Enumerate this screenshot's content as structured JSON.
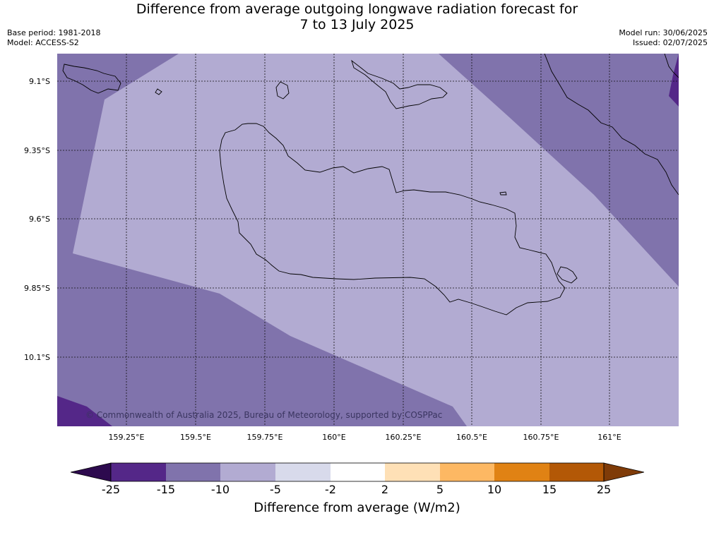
{
  "title_line1": "Difference from average outgoing longwave radiation forecast for",
  "title_line2": "7 to 13 July 2025",
  "base_period": "Base period: 1981-2018",
  "model": "Model: ACCESS-S2",
  "model_run": "Model run: 30/06/2025",
  "issued": "Issued: 02/07/2025",
  "lat_labels": [
    "9.1°S",
    "9.35°S",
    "9.6°S",
    "9.85°S",
    "10.1°S"
  ],
  "lon_labels": [
    "159.25°E",
    "159.5°E",
    "159.75°E",
    "160°E",
    "160.25°E",
    "160.5°E",
    "160.75°E",
    "161°E"
  ],
  "copyright": "© Commonwealth of Australia 2025, Bureau of Meteorology, supported by COSPPac",
  "colorbar": {
    "title": "Difference from average (W/m2)",
    "tick_labels": [
      "-25",
      "-15",
      "-10",
      "-5",
      "-2",
      "2",
      "5",
      "10",
      "15",
      "25"
    ],
    "colors": {
      "below_min": "#2d0a4e",
      "c1": "#542788",
      "c2": "#8073ac",
      "c3": "#b2abd2",
      "c4": "#d8daeb",
      "c5": "#ffffff",
      "c6": "#fee0b6",
      "c7": "#fdb863",
      "c8": "#e08214",
      "c9": "#b35806",
      "above_max": "#7f3b08"
    }
  },
  "map_fill_colors": {
    "outer": "#8073ac",
    "inner": "#b2abd2",
    "corner": "#542788"
  }
}
